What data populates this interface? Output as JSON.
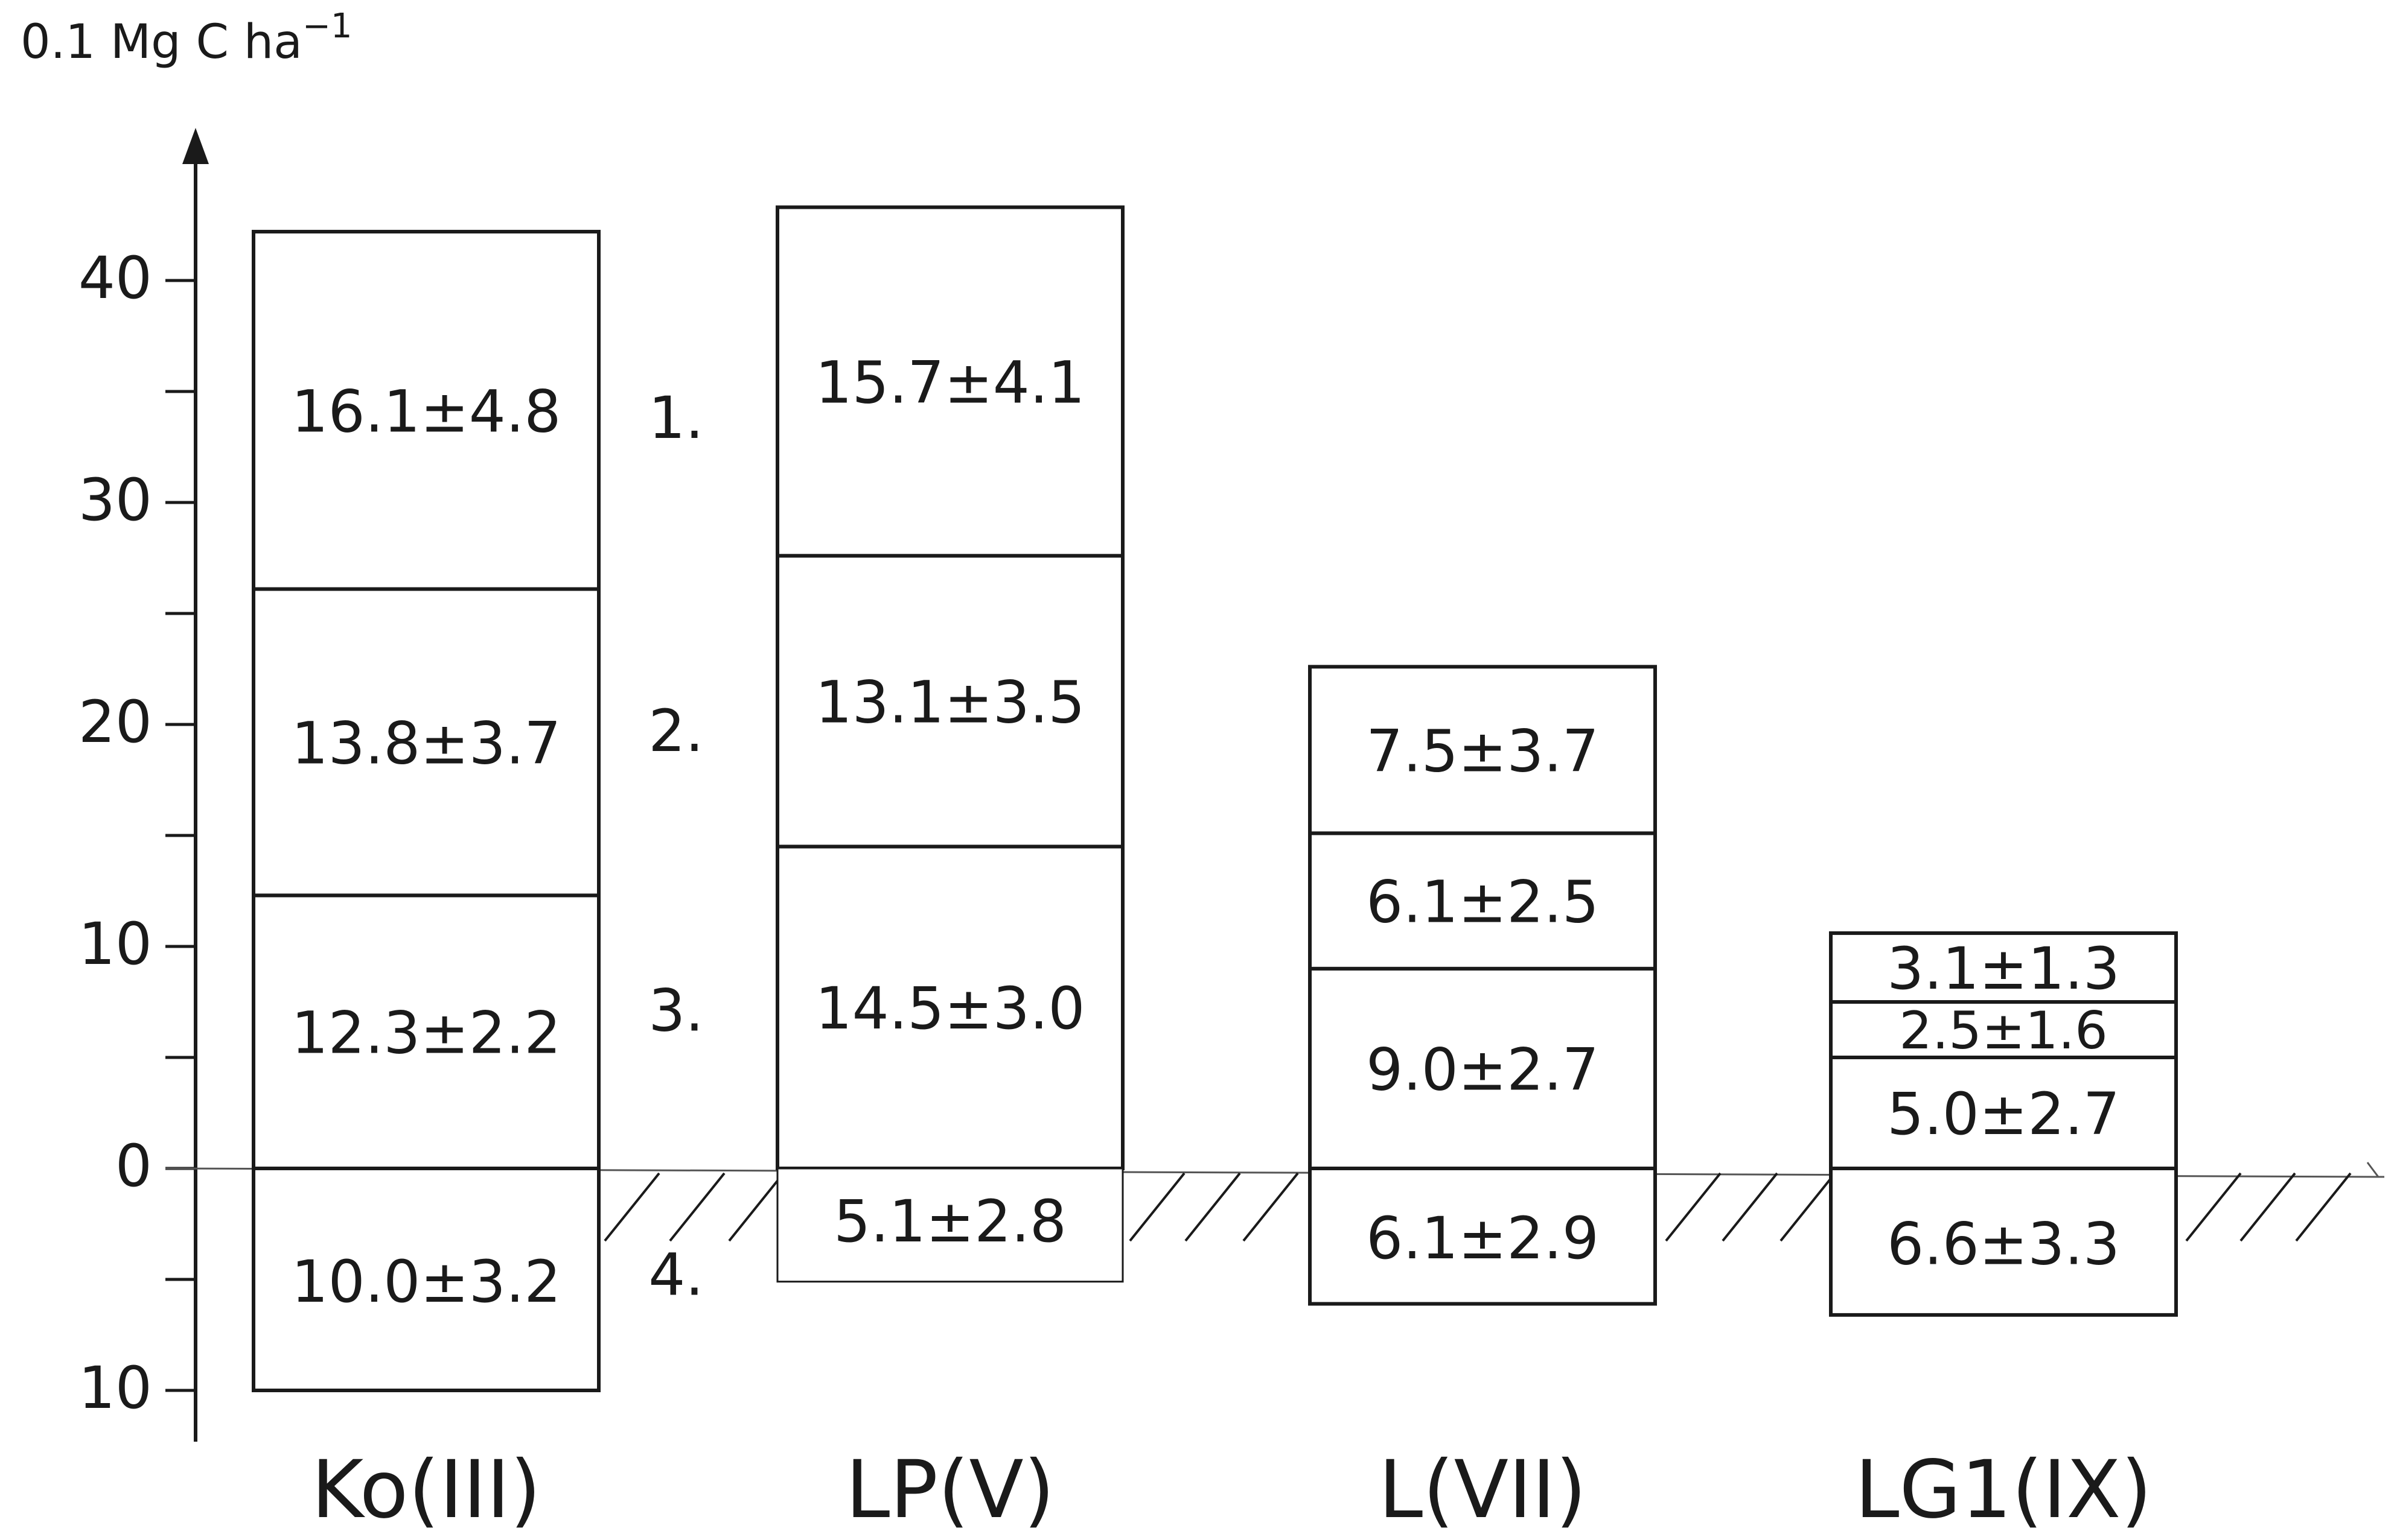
{
  "chart_data": {
    "type": "bar",
    "subtype": "stacked-boxes-above-and-below-baseline",
    "title": "",
    "ylabel": "0.1 Mg C ha",
    "ylabel_superscript": "−1",
    "xlabel": "",
    "ylim": [
      -10,
      40
    ],
    "y_ticks": [
      {
        "value": 40,
        "label": "40"
      },
      {
        "value": 30,
        "label": "30"
      },
      {
        "value": 20,
        "label": "20"
      },
      {
        "value": 10,
        "label": "10"
      },
      {
        "value": 0,
        "label": "0"
      },
      {
        "value": -10,
        "label": "10"
      }
    ],
    "grid": false,
    "layer_markers": [
      "1.",
      "2.",
      "3.",
      "4."
    ],
    "categories": [
      "Ko(III)",
      "LP(V)",
      "L(VII)",
      "LG1(IX)"
    ],
    "series": [
      {
        "layer": "1.",
        "values": [
          16.1,
          15.7,
          7.5,
          3.1
        ],
        "errors": [
          4.8,
          4.1,
          3.7,
          1.3
        ],
        "labels": [
          "16.1±4.8",
          "15.7±4.1",
          "7.5±3.7",
          "3.1±1.3"
        ]
      },
      {
        "layer": "2.",
        "values": [
          13.8,
          13.1,
          6.1,
          2.5
        ],
        "errors": [
          3.7,
          3.5,
          2.5,
          1.6
        ],
        "labels": [
          "13.8±3.7",
          "13.1±3.5",
          "6.1±2.5",
          "2.5±1.6"
        ]
      },
      {
        "layer": "3.",
        "values": [
          12.3,
          14.5,
          9.0,
          5.0
        ],
        "errors": [
          2.2,
          3.0,
          2.7,
          2.7
        ],
        "labels": [
          "12.3±2.2",
          "14.5±3.0",
          "9.0±2.7",
          "5.0±2.7"
        ]
      },
      {
        "layer": "4.",
        "values": [
          10.0,
          5.1,
          6.1,
          6.6
        ],
        "errors": [
          3.2,
          2.8,
          2.9,
          3.3
        ],
        "labels": [
          "10.0±3.2",
          "5.1±2.8",
          "6.1±2.9",
          "6.6±3.3"
        ]
      }
    ]
  }
}
